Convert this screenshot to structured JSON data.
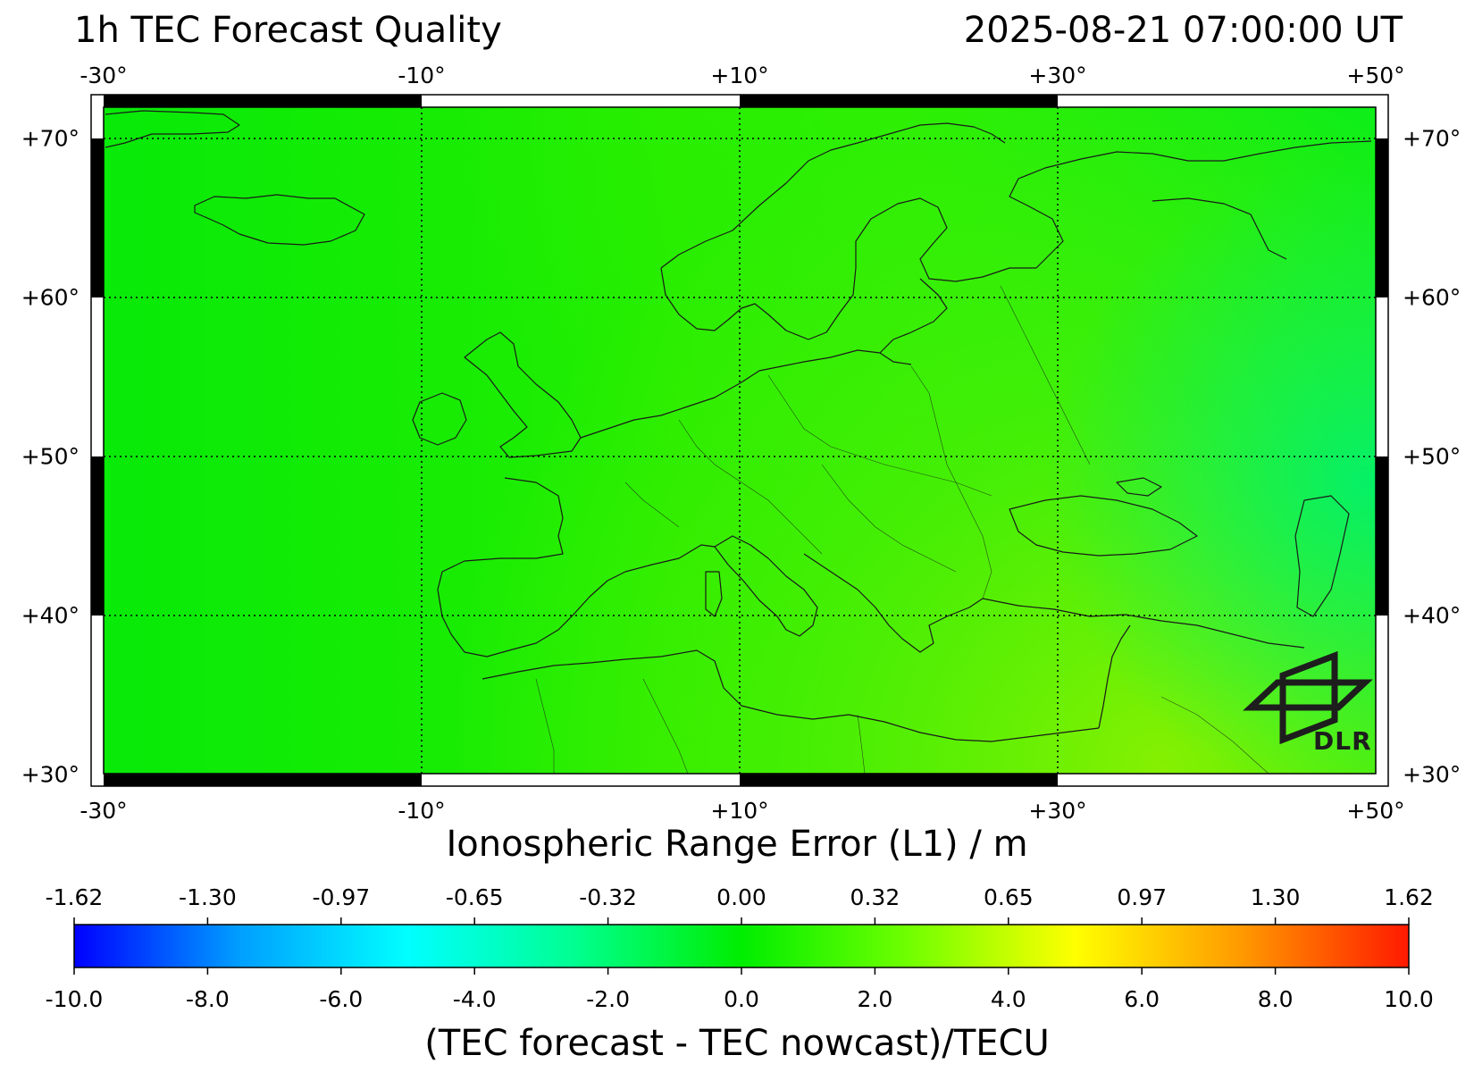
{
  "header": {
    "title": "1h TEC Forecast Quality",
    "timestamp": "2025-08-21 07:00:00 UT"
  },
  "map": {
    "lon_ticks": [
      "-30°",
      "-10°",
      "+10°",
      "+30°",
      "+50°"
    ],
    "lat_ticks": [
      "+70°",
      "+60°",
      "+50°",
      "+40°",
      "+30°"
    ],
    "region": {
      "lon_min": -30,
      "lon_max": 50,
      "lat_min": 30,
      "lat_max": 72
    },
    "gridlines": "dotted",
    "colors": {
      "base": "#08ee08",
      "southeast_tint": "#8cf000",
      "east_tint": "#00f060",
      "coastline": "#1a1a1a"
    }
  },
  "logo": {
    "text": "DLR",
    "icon": "dlr-logo-icon",
    "placement": "bottom-right"
  },
  "range_axis": {
    "label": "Ionospheric Range Error (L1) / m",
    "ticks": [
      "-1.62",
      "-1.30",
      "-0.97",
      "-0.65",
      "-0.32",
      "0.00",
      "0.32",
      "0.65",
      "0.97",
      "1.30",
      "1.62"
    ]
  },
  "colorbar": {
    "label": "(TEC forecast - TEC nowcast)/TECU",
    "ticks": [
      "-10.0",
      "-8.0",
      "-6.0",
      "-4.0",
      "-2.0",
      "0.0",
      "2.0",
      "4.0",
      "6.0",
      "8.0",
      "10.0"
    ],
    "range": [
      -10,
      10
    ],
    "colormap": [
      "#0000ff",
      "#00a0ff",
      "#00ffff",
      "#00ff90",
      "#00ee00",
      "#70ff00",
      "#ffff00",
      "#ff9900",
      "#ff1a00"
    ]
  }
}
